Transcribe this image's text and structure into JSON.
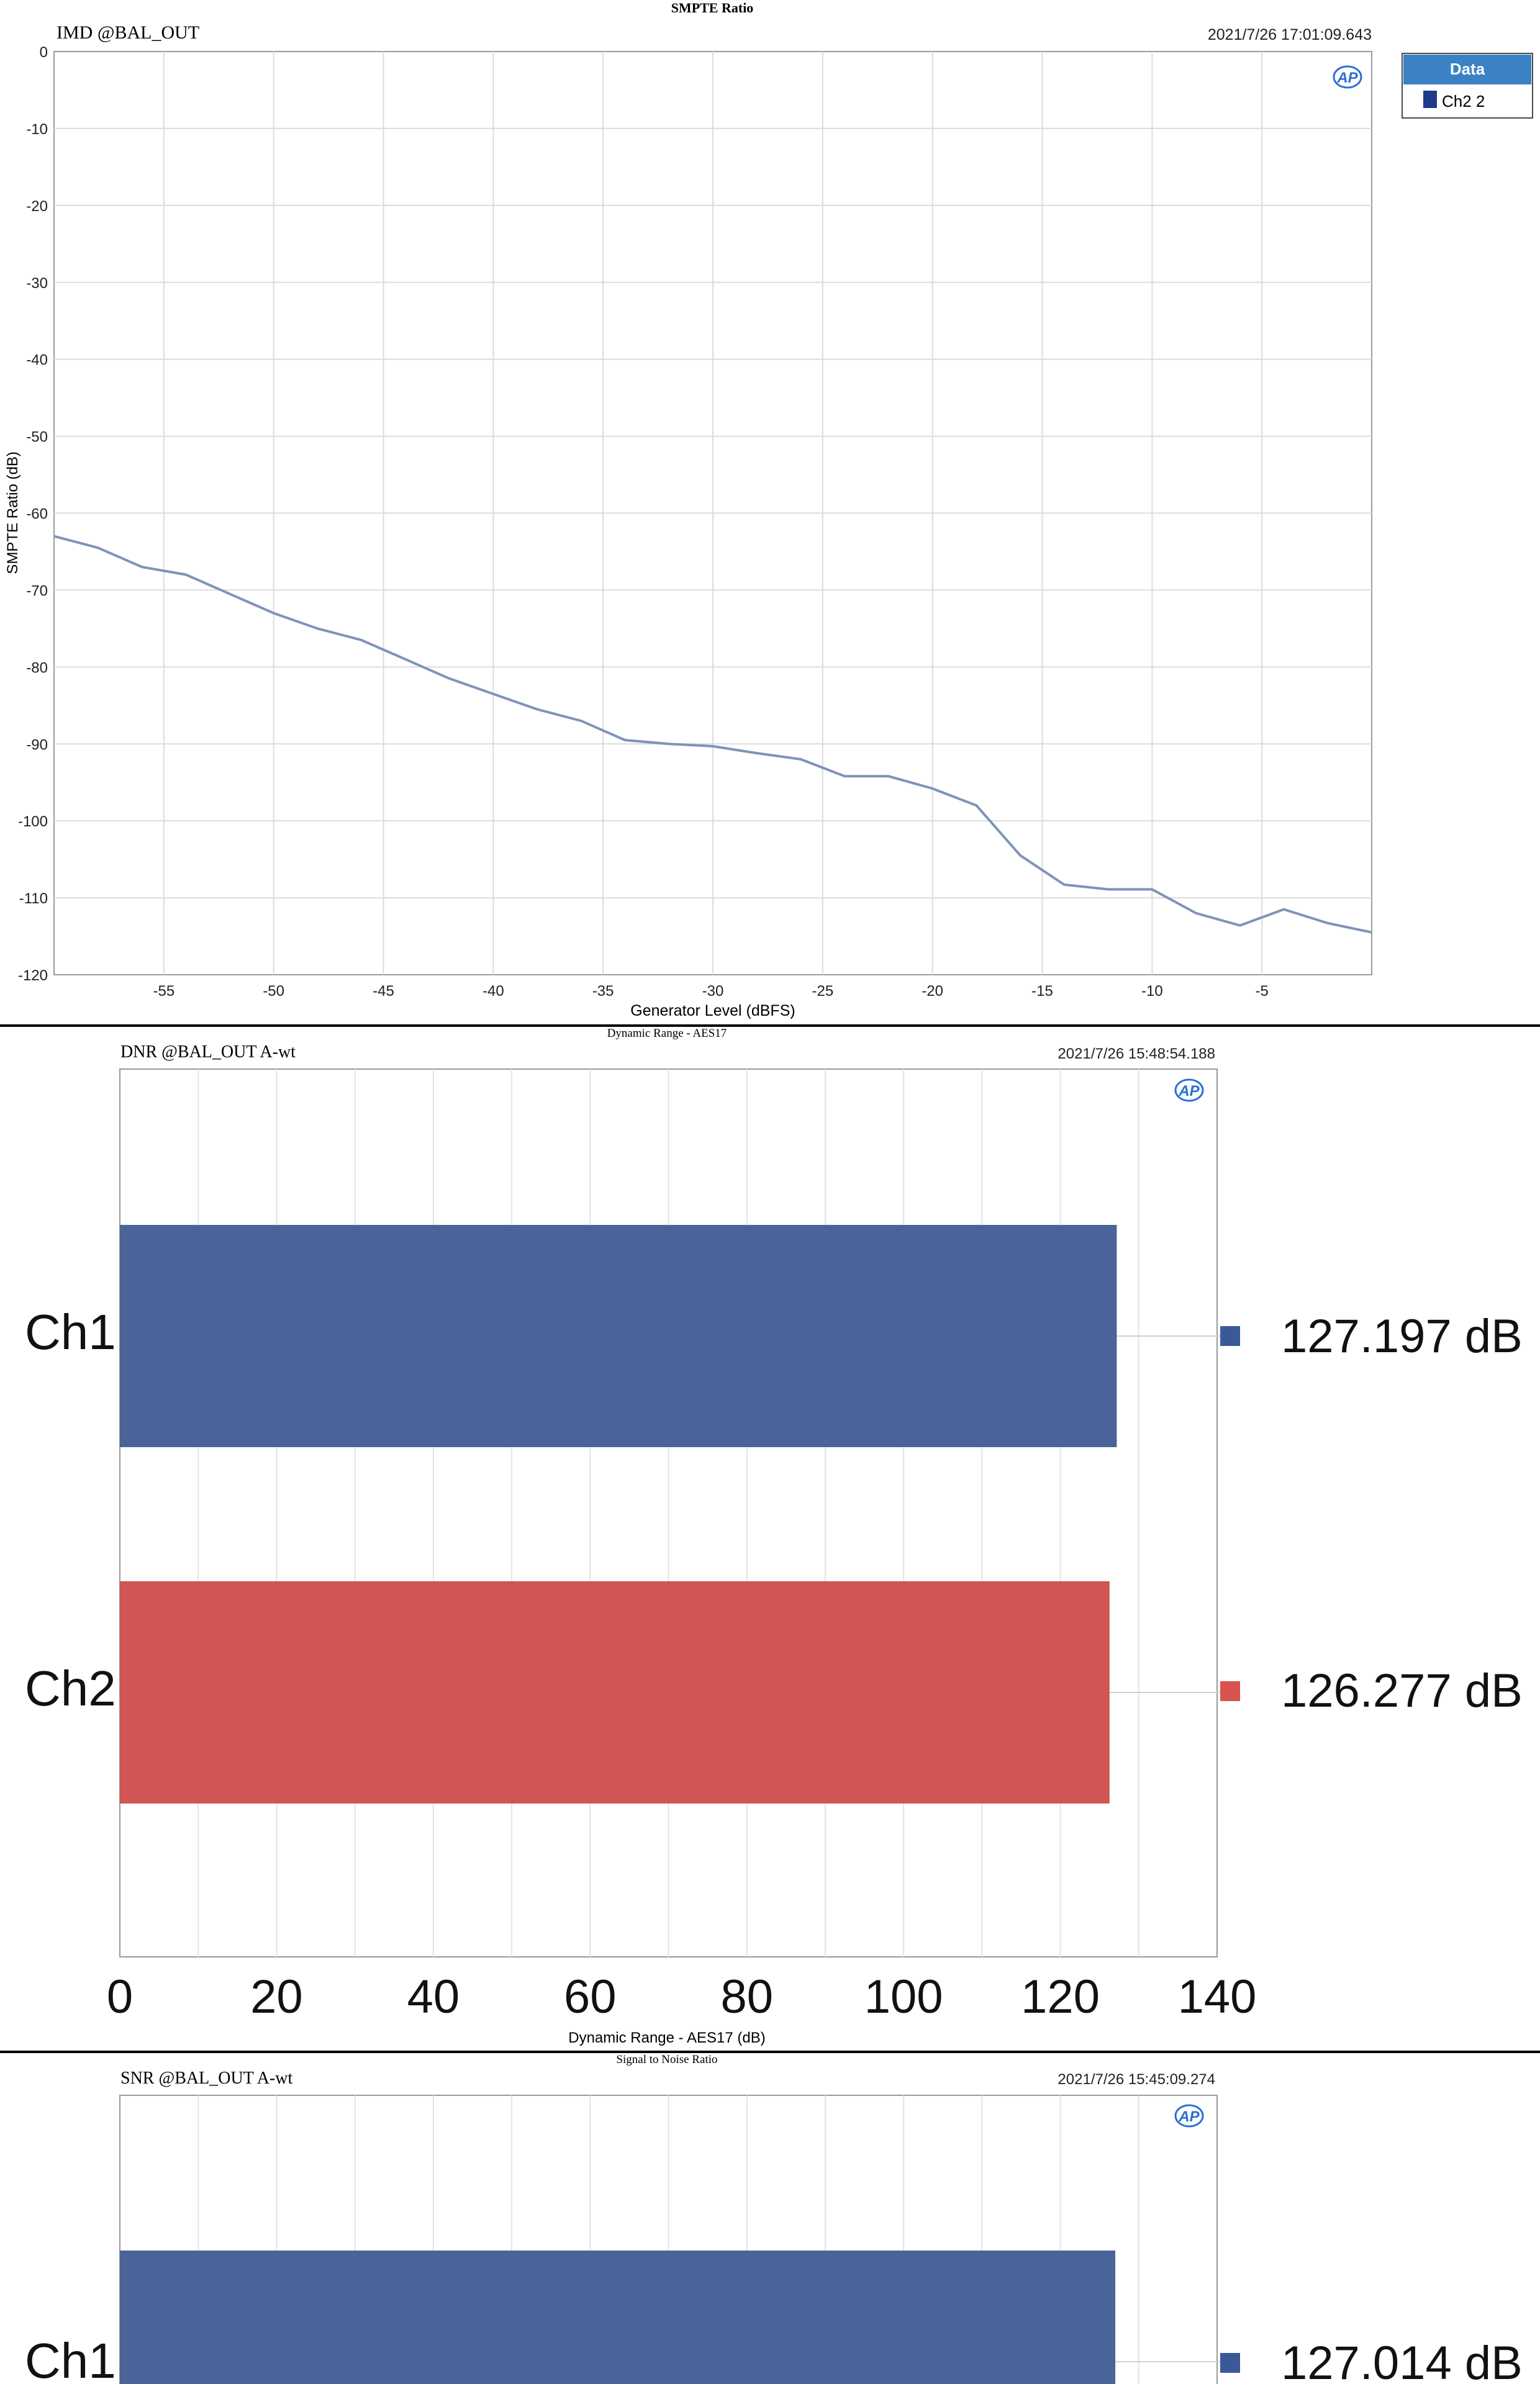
{
  "charts": {
    "imd": {
      "title": "SMPTE Ratio",
      "subtitle": "IMD @BAL_OUT",
      "timestamp": "2021/7/26 17:01:09.643",
      "ylabel": "SMPTE Ratio (dB)",
      "xlabel": "Generator Level (dBFS)",
      "yticks": [
        "0",
        "-10",
        "-20",
        "-30",
        "-40",
        "-50",
        "-60",
        "-70",
        "-80",
        "-90",
        "-100",
        "-110",
        "-120"
      ],
      "xticks": [
        "-55",
        "-50",
        "-45",
        "-40",
        "-35",
        "-30",
        "-25",
        "-20",
        "-15",
        "-10",
        "-5"
      ],
      "legend_header": "Data",
      "legend_item": "Ch2 2",
      "logo": "AP"
    },
    "dnr": {
      "title": "Dynamic Range - AES17",
      "subtitle": "DNR @BAL_OUT A-wt",
      "timestamp": "2021/7/26 15:48:54.188",
      "xlabel": "Dynamic Range - AES17 (dB)",
      "xticks": [
        "0",
        "20",
        "40",
        "60",
        "80",
        "100",
        "120",
        "140"
      ],
      "ch1_label": "Ch1",
      "ch2_label": "Ch2",
      "ch1_value": "127.197 dB",
      "ch2_value": "126.277 dB",
      "logo": "AP"
    },
    "snr": {
      "title": "Signal to Noise Ratio",
      "subtitle": "SNR @BAL_OUT A-wt",
      "timestamp": "2021/7/26 15:45:09.274",
      "ch1_label": "Ch1",
      "ch1_value": "127.014 dB",
      "logo": "AP"
    }
  },
  "chart_data": [
    {
      "type": "line",
      "title": "SMPTE Ratio",
      "xlabel": "Generator Level (dBFS)",
      "ylabel": "SMPTE Ratio (dB)",
      "xlim": [
        -60,
        0
      ],
      "ylim": [
        -120,
        0
      ],
      "grid": true,
      "legend": "top-right",
      "series": [
        {
          "name": "Ch2 2",
          "color": "#7f93b8",
          "x": [
            -60,
            -58,
            -56,
            -54,
            -52,
            -50,
            -48,
            -46,
            -44,
            -42,
            -40,
            -38,
            -36,
            -34,
            -32,
            -30,
            -28,
            -26,
            -24,
            -22,
            -20,
            -18,
            -16,
            -14,
            -12,
            -10,
            -8,
            -6,
            -4,
            -2,
            0
          ],
          "y": [
            -63,
            -64.5,
            -67,
            -68,
            -70.5,
            -73,
            -75,
            -76.5,
            -79,
            -81.5,
            -83.5,
            -85.5,
            -87,
            -89.5,
            -90,
            -90.3,
            -91.2,
            -92,
            -94.2,
            -94.2,
            -95.8,
            -98,
            -104.5,
            -108.3,
            -108.9,
            -108.9,
            -112,
            -113.6,
            -111.5,
            -113.3,
            -114.5
          ]
        }
      ]
    },
    {
      "type": "bar",
      "orientation": "horizontal",
      "title": "Dynamic Range - AES17",
      "xlabel": "Dynamic Range - AES17 (dB)",
      "xlim": [
        0,
        140
      ],
      "grid": true,
      "categories": [
        "Ch1",
        "Ch2"
      ],
      "values": [
        127.197,
        126.277
      ],
      "colors": [
        "#4a6398",
        "#d05553"
      ]
    },
    {
      "type": "bar",
      "orientation": "horizontal",
      "title": "Signal to Noise Ratio",
      "xlim": [
        0,
        140
      ],
      "grid": true,
      "categories": [
        "Ch1"
      ],
      "values": [
        127.014
      ],
      "colors": [
        "#4a6398"
      ]
    }
  ]
}
